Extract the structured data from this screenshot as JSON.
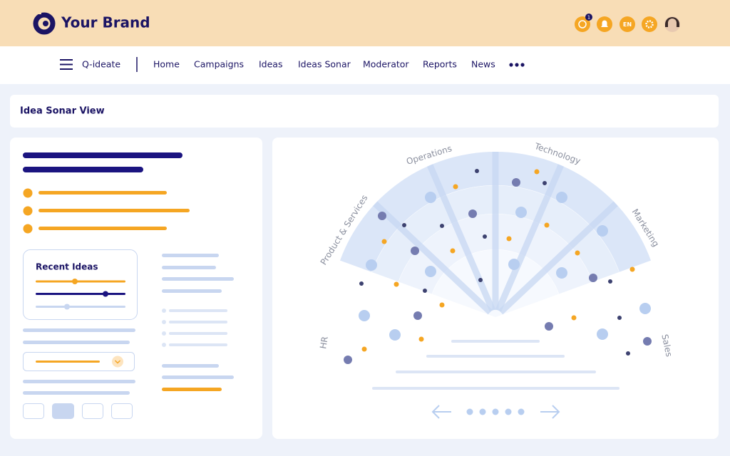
{
  "header": {
    "brand": "Your Brand",
    "notification_count": 1,
    "language": "EN"
  },
  "nav": {
    "app": "Q-ideate",
    "items": [
      "Home",
      "Campaigns",
      "Ideas",
      "Ideas Sonar",
      "Moderator",
      "Reports",
      "News"
    ]
  },
  "page_title": "Idea Sonar View",
  "panel": {
    "recent_ideas": "Recent Ideas"
  },
  "sonar": {
    "sectors": [
      "HR",
      "Product & Services",
      "Operations",
      "Technology",
      "Marketing",
      "Sales"
    ]
  }
}
